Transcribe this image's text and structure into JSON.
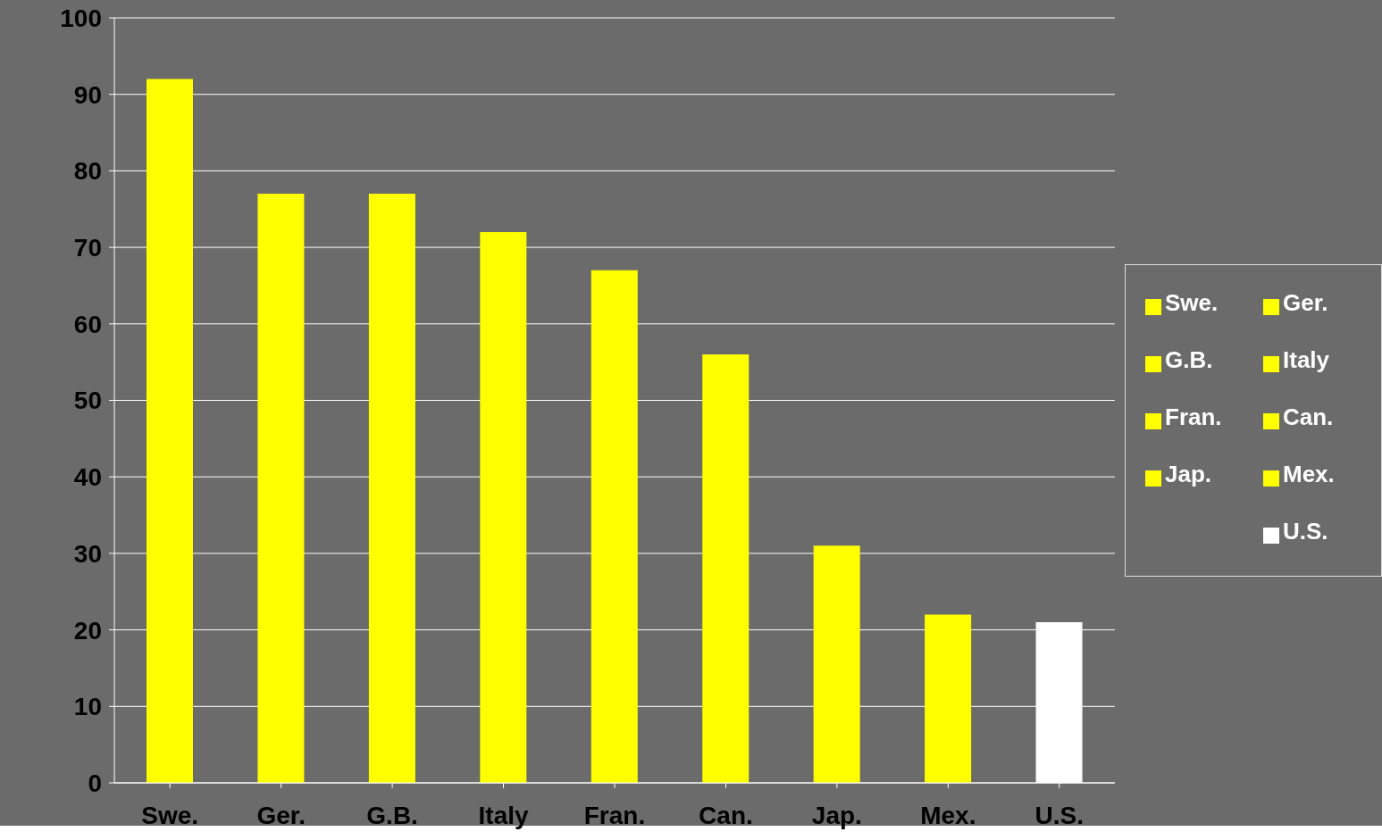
{
  "chart_data": {
    "type": "bar",
    "stacked": true,
    "categories": [
      "Swe.",
      "Ger.",
      "G.B.",
      "Italy",
      "Fran.",
      "Can.",
      "Jap.",
      "Mex.",
      "U.S."
    ],
    "series": [
      {
        "name": "Swe.",
        "color": "#ffff00",
        "values": [
          92,
          null,
          null,
          null,
          null,
          null,
          null,
          null,
          null
        ]
      },
      {
        "name": "Ger.",
        "color": "#ffff00",
        "values": [
          null,
          77,
          null,
          null,
          null,
          null,
          null,
          null,
          null
        ]
      },
      {
        "name": "G.B.",
        "color": "#ffff00",
        "values": [
          null,
          null,
          77,
          null,
          null,
          null,
          null,
          null,
          null
        ]
      },
      {
        "name": "Italy",
        "color": "#ffff00",
        "values": [
          null,
          null,
          null,
          72,
          null,
          null,
          null,
          null,
          null
        ]
      },
      {
        "name": "Fran.",
        "color": "#ffff00",
        "values": [
          null,
          null,
          null,
          null,
          67,
          null,
          null,
          null,
          null
        ]
      },
      {
        "name": "Can.",
        "color": "#ffff00",
        "values": [
          null,
          null,
          null,
          null,
          null,
          56,
          null,
          null,
          null
        ]
      },
      {
        "name": "Jap.",
        "color": "#ffff00",
        "values": [
          null,
          null,
          null,
          null,
          null,
          null,
          31,
          null,
          null
        ]
      },
      {
        "name": "Mex.",
        "color": "#ffff00",
        "values": [
          null,
          null,
          null,
          null,
          null,
          null,
          null,
          22,
          null
        ]
      },
      {
        "name": "U.S.",
        "color": "#ffffff",
        "values": [
          null,
          null,
          null,
          null,
          null,
          null,
          null,
          null,
          21
        ]
      }
    ],
    "ylim": [
      0,
      100
    ],
    "yticks": [
      0,
      10,
      20,
      30,
      40,
      50,
      60,
      70,
      80,
      90,
      100
    ],
    "grid": "y",
    "legend": "right"
  }
}
